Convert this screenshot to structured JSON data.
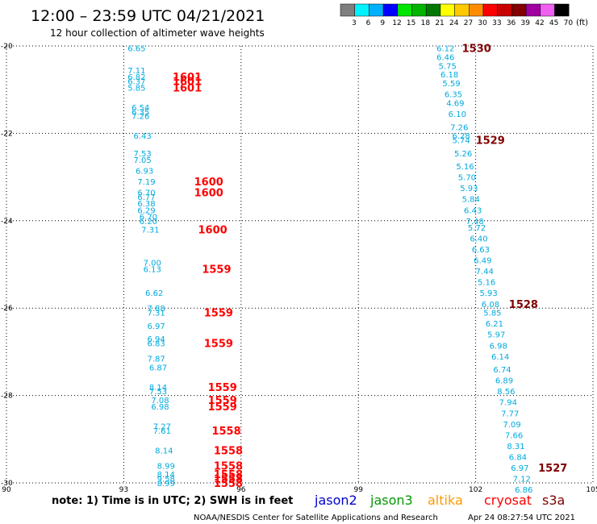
{
  "header": {
    "title": "12:00 – 23:59 UTC 04/21/2021",
    "subtitle": "12 hour collection of altimeter wave heights"
  },
  "colorbar": {
    "unit": "(ft)",
    "levels": [
      {
        "label": "3",
        "color": "#7f7f7f"
      },
      {
        "label": "6",
        "color": "#00f2ff"
      },
      {
        "label": "9",
        "color": "#00b0ff"
      },
      {
        "label": "12",
        "color": "#0000ff"
      },
      {
        "label": "15",
        "color": "#00e600"
      },
      {
        "label": "18",
        "color": "#00b400"
      },
      {
        "label": "21",
        "color": "#007800"
      },
      {
        "label": "24",
        "color": "#ffff00"
      },
      {
        "label": "27",
        "color": "#ffc800"
      },
      {
        "label": "30",
        "color": "#ff8c00"
      },
      {
        "label": "33",
        "color": "#ff0000"
      },
      {
        "label": "36",
        "color": "#c80000"
      },
      {
        "label": "39",
        "color": "#820000"
      },
      {
        "label": "42",
        "color": "#a000a0"
      },
      {
        "label": "45",
        "color": "#f060f0"
      },
      {
        "label": "70",
        "color": "#000000"
      }
    ]
  },
  "footer": {
    "note": "note: 1) Time is in UTC; 2) SWH is in feet",
    "credit": "NOAA/NESDIS Center for Satellite Applications and Research",
    "timestamp": "Apr 24 08:27:54 UTC 2021"
  },
  "legend": [
    {
      "name": "jason2",
      "color": "#0000cc"
    },
    {
      "name": "jason3",
      "color": "#009900"
    },
    {
      "name": "altika",
      "color": "#ff9900"
    },
    {
      "name": "cryosat",
      "color": "#ff0000"
    },
    {
      "name": "s3a",
      "color": "#800000"
    }
  ],
  "colors": {
    "swh_text": "#00aadd",
    "track1_time": "#ff0000",
    "track2_time": "#800000",
    "grid": "#000000"
  },
  "chart_data": {
    "type": "scatter",
    "xlim": [
      90,
      105
    ],
    "ylim": [
      -30,
      -20
    ],
    "x_ticks": [
      90,
      93,
      96,
      99,
      102,
      105
    ],
    "y_ticks": [
      -20,
      -22,
      -24,
      -26,
      -28,
      -30
    ],
    "grid": true,
    "tracks": [
      {
        "time_color": "#ff0000",
        "points": [
          {
            "x": 93.1,
            "y": -20.05,
            "v": "6.65"
          },
          {
            "x": 93.1,
            "y": -20.55,
            "v": "7.11"
          },
          {
            "x": 93.1,
            "y": -20.7,
            "v": "6.82"
          },
          {
            "x": 93.1,
            "y": -20.8,
            "v": "6.37"
          },
          {
            "x": 93.1,
            "y": -20.95,
            "v": "5.85"
          },
          {
            "x": 93.2,
            "y": -21.4,
            "v": "6.54"
          },
          {
            "x": 93.2,
            "y": -21.5,
            "v": "6.35"
          },
          {
            "x": 93.2,
            "y": -21.6,
            "v": "7.26"
          },
          {
            "x": 93.25,
            "y": -22.05,
            "v": "6.43"
          },
          {
            "x": 93.25,
            "y": -22.45,
            "v": "7.53"
          },
          {
            "x": 93.25,
            "y": -22.6,
            "v": "7.05"
          },
          {
            "x": 93.3,
            "y": -22.85,
            "v": "6.93"
          },
          {
            "x": 93.35,
            "y": -23.1,
            "v": "7.19"
          },
          {
            "x": 93.35,
            "y": -23.35,
            "v": "6.70"
          },
          {
            "x": 93.35,
            "y": -23.45,
            "v": "6.77"
          },
          {
            "x": 93.35,
            "y": -23.6,
            "v": "6.38"
          },
          {
            "x": 93.35,
            "y": -23.75,
            "v": "6.29"
          },
          {
            "x": 93.4,
            "y": -23.9,
            "v": "6.70"
          },
          {
            "x": 93.4,
            "y": -24.0,
            "v": "6.20"
          },
          {
            "x": 93.45,
            "y": -24.2,
            "v": "7.31"
          },
          {
            "x": 93.5,
            "y": -24.95,
            "v": "7.00"
          },
          {
            "x": 93.5,
            "y": -25.1,
            "v": "6.13"
          },
          {
            "x": 93.55,
            "y": -25.65,
            "v": "6.62"
          },
          {
            "x": 93.6,
            "y": -26.0,
            "v": "7.88"
          },
          {
            "x": 93.6,
            "y": -26.1,
            "v": "7.31"
          },
          {
            "x": 93.6,
            "y": -26.4,
            "v": "6.97"
          },
          {
            "x": 93.6,
            "y": -26.7,
            "v": "6.94"
          },
          {
            "x": 93.6,
            "y": -26.8,
            "v": "6.83"
          },
          {
            "x": 93.6,
            "y": -27.15,
            "v": "7.87"
          },
          {
            "x": 93.65,
            "y": -27.35,
            "v": "6.87"
          },
          {
            "x": 93.65,
            "y": -27.8,
            "v": "8.14"
          },
          {
            "x": 93.65,
            "y": -27.9,
            "v": "7.53"
          },
          {
            "x": 93.7,
            "y": -28.1,
            "v": "7.08"
          },
          {
            "x": 93.7,
            "y": -28.25,
            "v": "6.98"
          },
          {
            "x": 93.75,
            "y": -28.7,
            "v": "7.27"
          },
          {
            "x": 93.75,
            "y": -28.8,
            "v": "7.61"
          },
          {
            "x": 93.8,
            "y": -29.25,
            "v": "8.14"
          },
          {
            "x": 93.85,
            "y": -29.6,
            "v": "8.99"
          },
          {
            "x": 93.85,
            "y": -29.8,
            "v": "8.14"
          },
          {
            "x": 93.85,
            "y": -29.9,
            "v": "9.58"
          },
          {
            "x": 93.85,
            "y": -30.0,
            "v": "8.99"
          }
        ],
        "times": [
          {
            "x": 94.25,
            "y": -20.7,
            "t": "1601"
          },
          {
            "x": 94.25,
            "y": -20.8,
            "t": "1601"
          },
          {
            "x": 94.25,
            "y": -20.95,
            "t": "1601"
          },
          {
            "x": 94.8,
            "y": -23.1,
            "t": "1600"
          },
          {
            "x": 94.8,
            "y": -23.35,
            "t": "1600"
          },
          {
            "x": 94.9,
            "y": -24.2,
            "t": "1600"
          },
          {
            "x": 95.0,
            "y": -25.1,
            "t": "1559"
          },
          {
            "x": 95.05,
            "y": -26.1,
            "t": "1559"
          },
          {
            "x": 95.05,
            "y": -26.8,
            "t": "1559"
          },
          {
            "x": 95.15,
            "y": -27.8,
            "t": "1559"
          },
          {
            "x": 95.15,
            "y": -28.1,
            "t": "1559"
          },
          {
            "x": 95.15,
            "y": -28.25,
            "t": "1559"
          },
          {
            "x": 95.25,
            "y": -28.8,
            "t": "1558"
          },
          {
            "x": 95.3,
            "y": -29.25,
            "t": "1558"
          },
          {
            "x": 95.3,
            "y": -29.6,
            "t": "1558"
          },
          {
            "x": 95.3,
            "y": -29.8,
            "t": "1558"
          },
          {
            "x": 95.3,
            "y": -29.9,
            "t": "1558"
          },
          {
            "x": 95.3,
            "y": -30.0,
            "t": "1558"
          }
        ]
      },
      {
        "time_color": "#800000",
        "points": [
          {
            "x": 101.0,
            "y": -20.05,
            "v": "6.12"
          },
          {
            "x": 101.0,
            "y": -20.25,
            "v": "6.46"
          },
          {
            "x": 101.05,
            "y": -20.45,
            "v": "5.75"
          },
          {
            "x": 101.1,
            "y": -20.65,
            "v": "6.18"
          },
          {
            "x": 101.15,
            "y": -20.85,
            "v": "5.59"
          },
          {
            "x": 101.2,
            "y": -21.1,
            "v": "6.35"
          },
          {
            "x": 101.25,
            "y": -21.3,
            "v": "4.69"
          },
          {
            "x": 101.3,
            "y": -21.55,
            "v": "6.10"
          },
          {
            "x": 101.35,
            "y": -21.85,
            "v": "7.26"
          },
          {
            "x": 101.4,
            "y": -22.05,
            "v": "6.28"
          },
          {
            "x": 101.4,
            "y": -22.15,
            "v": "5.74"
          },
          {
            "x": 101.45,
            "y": -22.45,
            "v": "5.26"
          },
          {
            "x": 101.5,
            "y": -22.75,
            "v": "5.16"
          },
          {
            "x": 101.55,
            "y": -23.0,
            "v": "5.70"
          },
          {
            "x": 101.6,
            "y": -23.25,
            "v": "5.93"
          },
          {
            "x": 101.65,
            "y": -23.5,
            "v": "5.84"
          },
          {
            "x": 101.7,
            "y": -23.75,
            "v": "6.43"
          },
          {
            "x": 101.75,
            "y": -24.0,
            "v": "7.48"
          },
          {
            "x": 101.8,
            "y": -24.15,
            "v": "5.72"
          },
          {
            "x": 101.85,
            "y": -24.4,
            "v": "6.40"
          },
          {
            "x": 101.9,
            "y": -24.65,
            "v": "6.63"
          },
          {
            "x": 101.95,
            "y": -24.9,
            "v": "6.49"
          },
          {
            "x": 102.0,
            "y": -25.15,
            "v": "7.44"
          },
          {
            "x": 102.05,
            "y": -25.4,
            "v": "5.16"
          },
          {
            "x": 102.1,
            "y": -25.65,
            "v": "5.93"
          },
          {
            "x": 102.15,
            "y": -25.9,
            "v": "6.08"
          },
          {
            "x": 102.2,
            "y": -26.1,
            "v": "5.85"
          },
          {
            "x": 102.25,
            "y": -26.35,
            "v": "6.21"
          },
          {
            "x": 102.3,
            "y": -26.6,
            "v": "5.97"
          },
          {
            "x": 102.35,
            "y": -26.85,
            "v": "6.98"
          },
          {
            "x": 102.4,
            "y": -27.1,
            "v": "6.14"
          },
          {
            "x": 102.45,
            "y": -27.4,
            "v": "6.74"
          },
          {
            "x": 102.5,
            "y": -27.65,
            "v": "6.89"
          },
          {
            "x": 102.55,
            "y": -27.9,
            "v": "8.56"
          },
          {
            "x": 102.6,
            "y": -28.15,
            "v": "7.94"
          },
          {
            "x": 102.65,
            "y": -28.4,
            "v": "7.77"
          },
          {
            "x": 102.7,
            "y": -28.65,
            "v": "7.09"
          },
          {
            "x": 102.75,
            "y": -28.9,
            "v": "7.66"
          },
          {
            "x": 102.8,
            "y": -29.15,
            "v": "8.31"
          },
          {
            "x": 102.85,
            "y": -29.4,
            "v": "6.84"
          },
          {
            "x": 102.9,
            "y": -29.65,
            "v": "6.97"
          },
          {
            "x": 102.95,
            "y": -29.9,
            "v": "7.12"
          },
          {
            "x": 103.0,
            "y": -30.15,
            "v": "6.86"
          }
        ],
        "times": [
          {
            "x": 101.65,
            "y": -20.05,
            "t": "1530"
          },
          {
            "x": 102.0,
            "y": -22.15,
            "t": "1529"
          },
          {
            "x": 102.85,
            "y": -25.9,
            "t": "1528"
          },
          {
            "x": 103.6,
            "y": -29.65,
            "t": "1527"
          }
        ]
      }
    ]
  }
}
